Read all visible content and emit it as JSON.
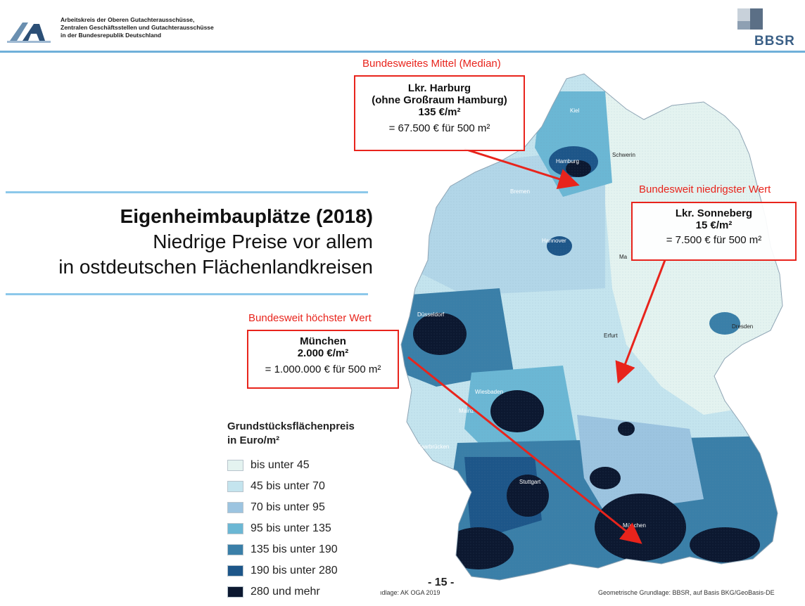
{
  "header": {
    "org_lines": [
      "Arbeitskreis der Oberen Gutachterausschüsse,",
      "Zentralen Geschäftsstellen und Gutachterausschüsse",
      "in der Bundesrepublik Deutschland"
    ],
    "logo_text": "GA",
    "bbsr_text": "BBSR"
  },
  "title": {
    "main": "Eigenheimbauplätze (2018)",
    "sub1": "Niedrige Preise vor allem",
    "sub2": "in ostdeutschen Flächenlandkreisen"
  },
  "annotations": {
    "median": {
      "label": "Bundesweites Mittel (Median)",
      "line1": "Lkr. Harburg",
      "line2": "(ohne Großraum Hamburg)",
      "line3": "135 €/m²",
      "line4": "=  67.500 € für 500 m²"
    },
    "lowest": {
      "label": "Bundesweit niedrigster Wert",
      "line1": "Lkr. Sonneberg",
      "line2": "15 €/m²",
      "line3": "= 7.500 € für 500 m²"
    },
    "highest": {
      "label": "Bundesweit höchster Wert",
      "line1": "München",
      "line2": "2.000 €/m²",
      "line3": "= 1.000.000 € für 500 m²"
    }
  },
  "cities": [
    "Kiel",
    "Hamburg",
    "Schwerin",
    "Bremen",
    "Hannover",
    "Ma",
    "Düsseldorf",
    "Erfurt",
    "Dresden",
    "Wiesbaden",
    "Mainz",
    "Saarbrücken",
    "Stuttgart",
    "München"
  ],
  "legend": {
    "title1": "Grundstücksflächenpreis",
    "title2": "in Euro/m²",
    "items": [
      {
        "label": "bis unter 45",
        "color": "#e4f3f0"
      },
      {
        "label": "45 bis unter 70",
        "color": "#c4e4ee"
      },
      {
        "label": "70 bis unter 95",
        "color": "#9cc4e0"
      },
      {
        "label": "95 bis unter 135",
        "color": "#6bb7d4"
      },
      {
        "label": "135 bis unter 190",
        "color": "#3a7fa8"
      },
      {
        "label": "190 bis unter 280",
        "color": "#1d5689"
      },
      {
        "label": "280 und mehr",
        "color": "#0c1830"
      }
    ]
  },
  "footer": {
    "left": "ıdlage: AK OGA  2019",
    "page": "- 15 -",
    "right": "Geometrische Grundlage: BBSR, auf Basis BKG/GeoBasis-DE"
  },
  "colors": {
    "accent_red": "#e8241c",
    "rule_blue": "#6fb0d9"
  }
}
